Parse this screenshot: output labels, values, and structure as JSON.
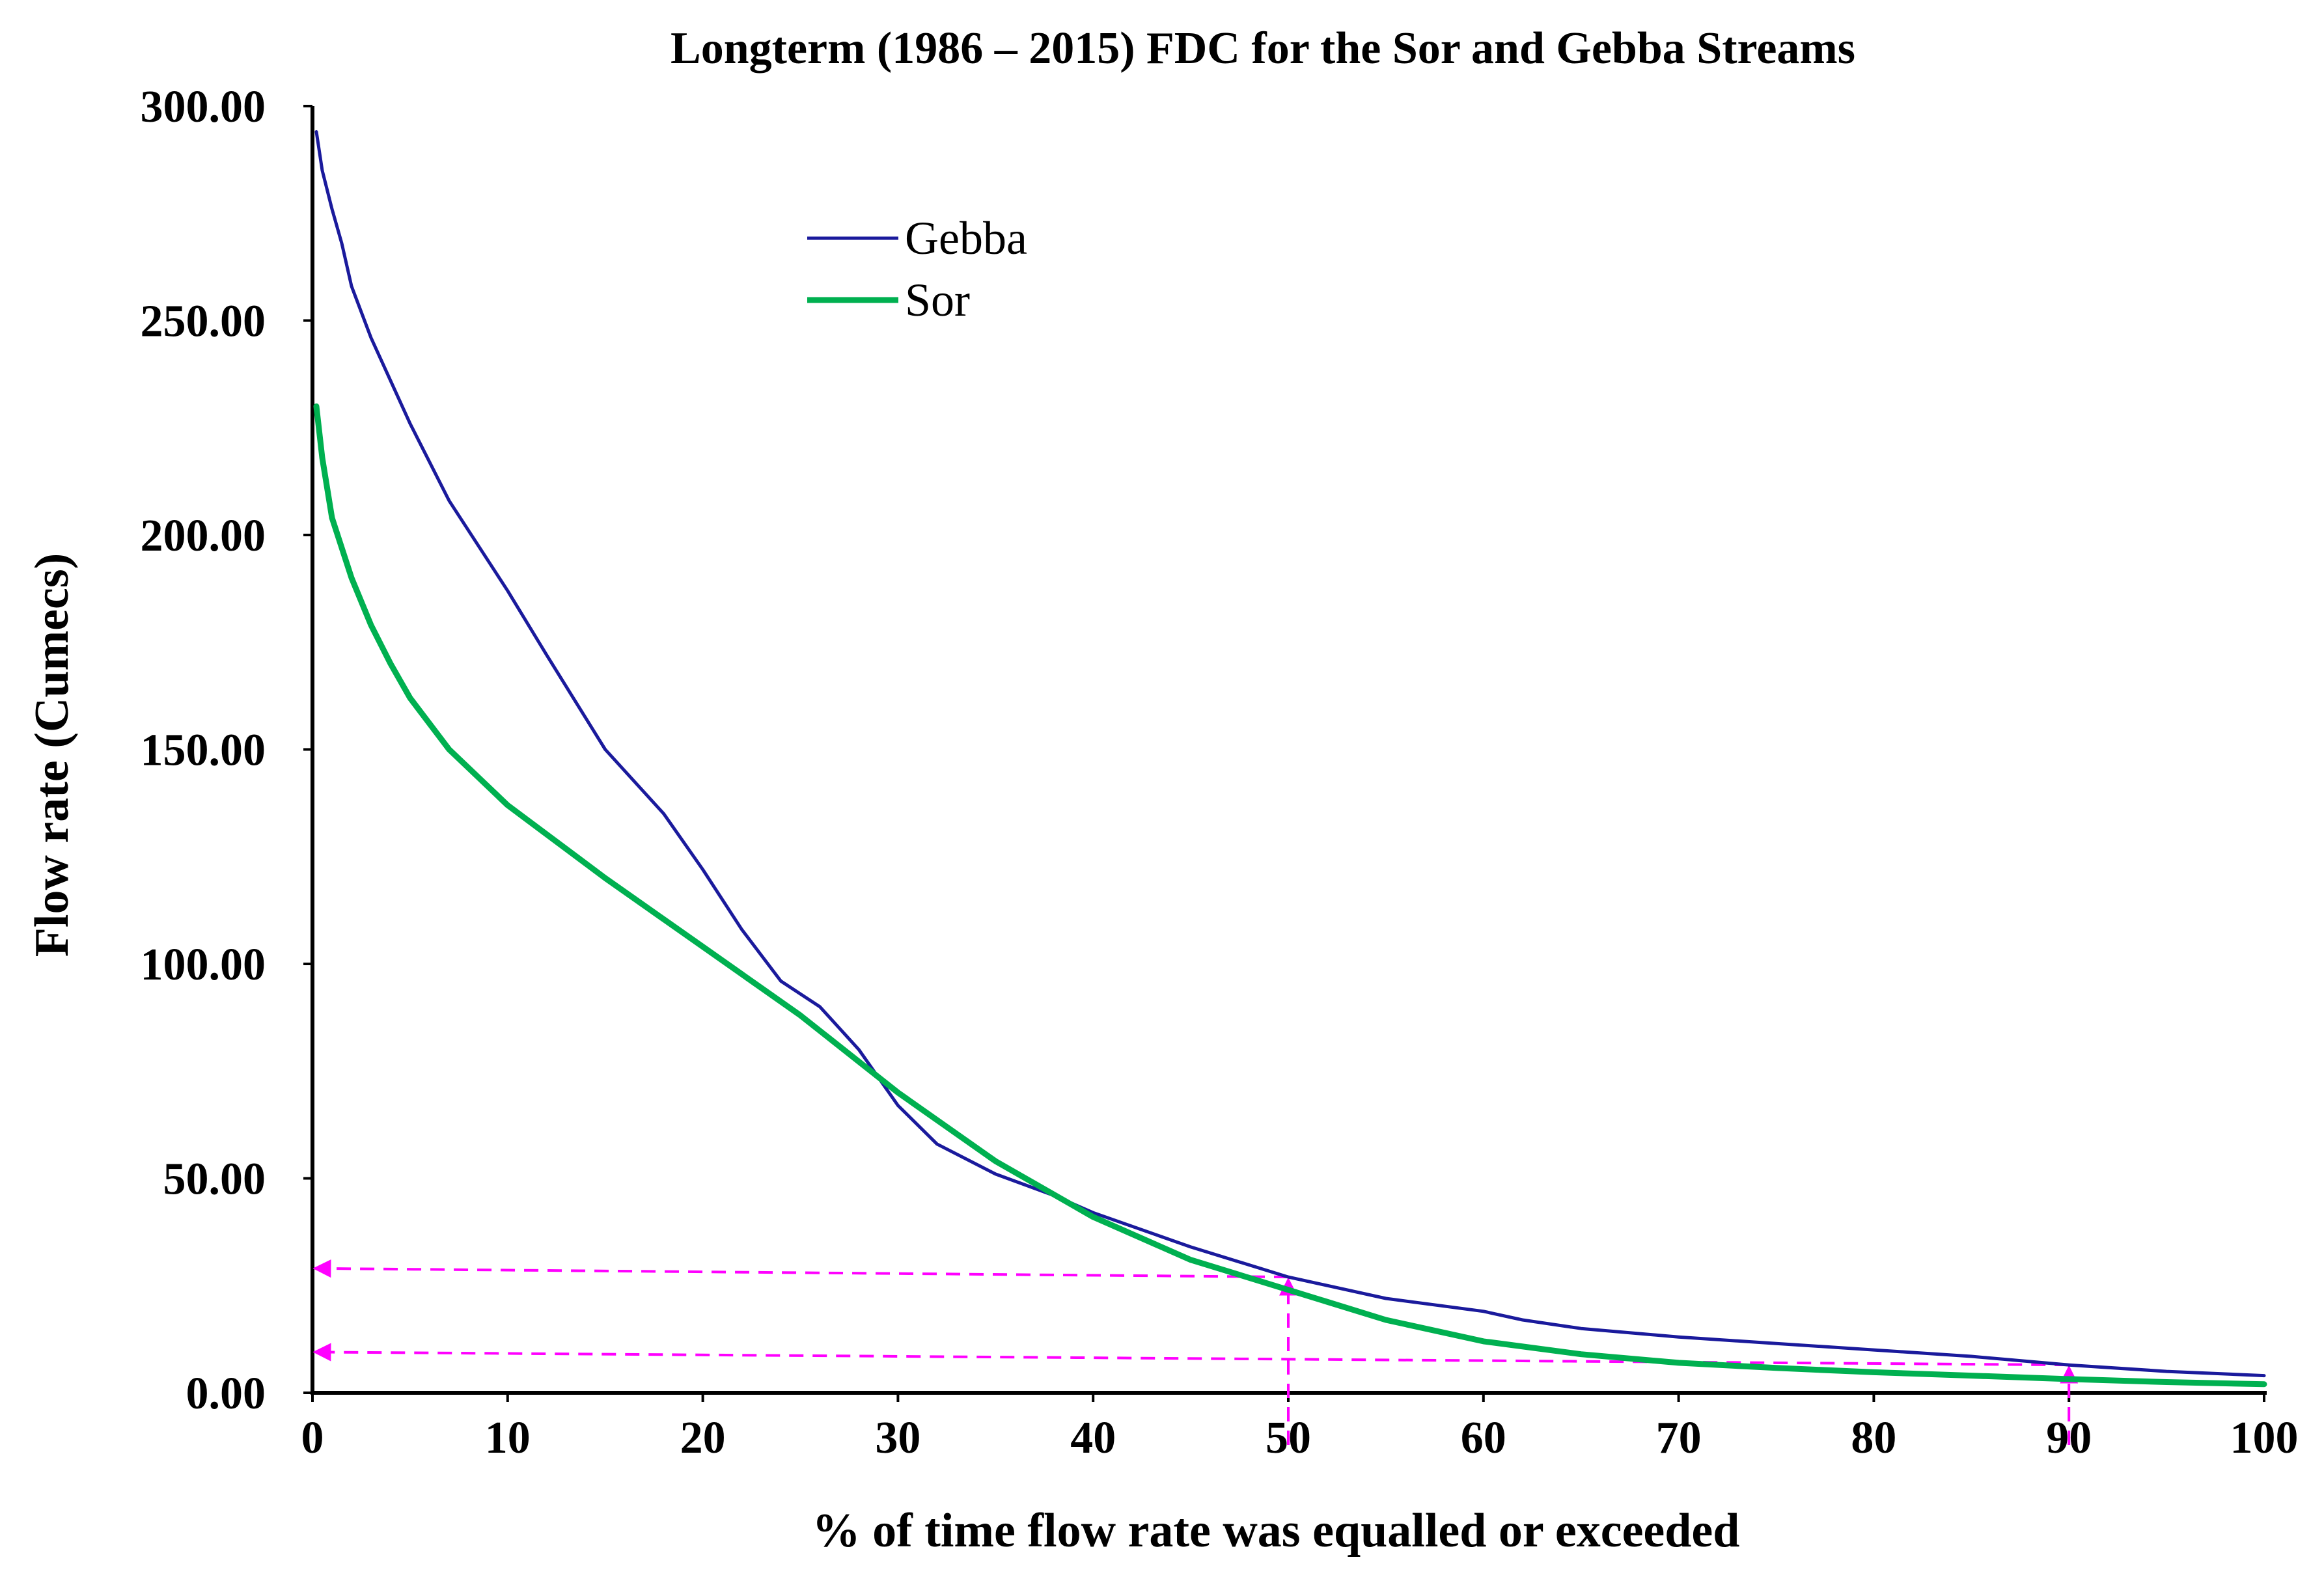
{
  "chart_data": {
    "type": "line",
    "title": "Longterm (1986 – 2015) FDC for the Sor and Gebba Streams",
    "xlabel": "% of time flow rate was equalled or exceeded",
    "ylabel": "Flow rate (Cumecs)",
    "xlim": [
      0,
      100
    ],
    "ylim": [
      0,
      300
    ],
    "x_ticks": [
      "0",
      "10",
      "20",
      "30",
      "40",
      "50",
      "60",
      "70",
      "80",
      "90",
      "100"
    ],
    "y_ticks": [
      "0.00",
      "50.00",
      "100.00",
      "150.00",
      "200.00",
      "250.00",
      "300.00"
    ],
    "grid": false,
    "legend_position": "top-center",
    "series": [
      {
        "name": "Gebba",
        "color": "#1a1a9c",
        "x": [
          0.2,
          0.5,
          1,
          1.5,
          2,
          3,
          4,
          5,
          7,
          10,
          12,
          15,
          18,
          20,
          22,
          24,
          26,
          28,
          30,
          32,
          35,
          38,
          40,
          45,
          50,
          55,
          60,
          62,
          65,
          70,
          75,
          80,
          85,
          90,
          95,
          100
        ],
        "y": [
          294,
          285,
          276,
          268,
          258,
          246,
          236,
          226,
          208,
          187,
          172,
          150,
          135,
          122,
          108,
          96,
          90,
          80,
          67,
          58,
          51,
          46,
          42,
          34,
          27,
          22,
          19,
          17,
          15,
          13,
          11.5,
          10,
          8.5,
          6.5,
          5,
          4
        ]
      },
      {
        "name": "Sor",
        "color": "#00b050",
        "x": [
          0.2,
          0.5,
          1,
          2,
          3,
          4,
          5,
          7,
          10,
          15,
          20,
          25,
          30,
          35,
          40,
          45,
          50,
          55,
          60,
          65,
          70,
          75,
          80,
          85,
          90,
          95,
          100
        ],
        "y": [
          230,
          218,
          204,
          190,
          179,
          170,
          162,
          150,
          137,
          120,
          104,
          88,
          70,
          54,
          41,
          31,
          24,
          17,
          12,
          9,
          7,
          5.8,
          4.8,
          4,
          3.2,
          2.5,
          2
        ]
      }
    ],
    "annotations": [
      {
        "type": "arrow-path",
        "color": "#ff00ff",
        "x_percent": 50,
        "flow_value": 27,
        "y_axis_arrow_value": 29
      },
      {
        "type": "arrow-path",
        "color": "#ff00ff",
        "x_percent": 90,
        "flow_value": 6.5,
        "y_axis_arrow_value": 9.5
      }
    ]
  }
}
